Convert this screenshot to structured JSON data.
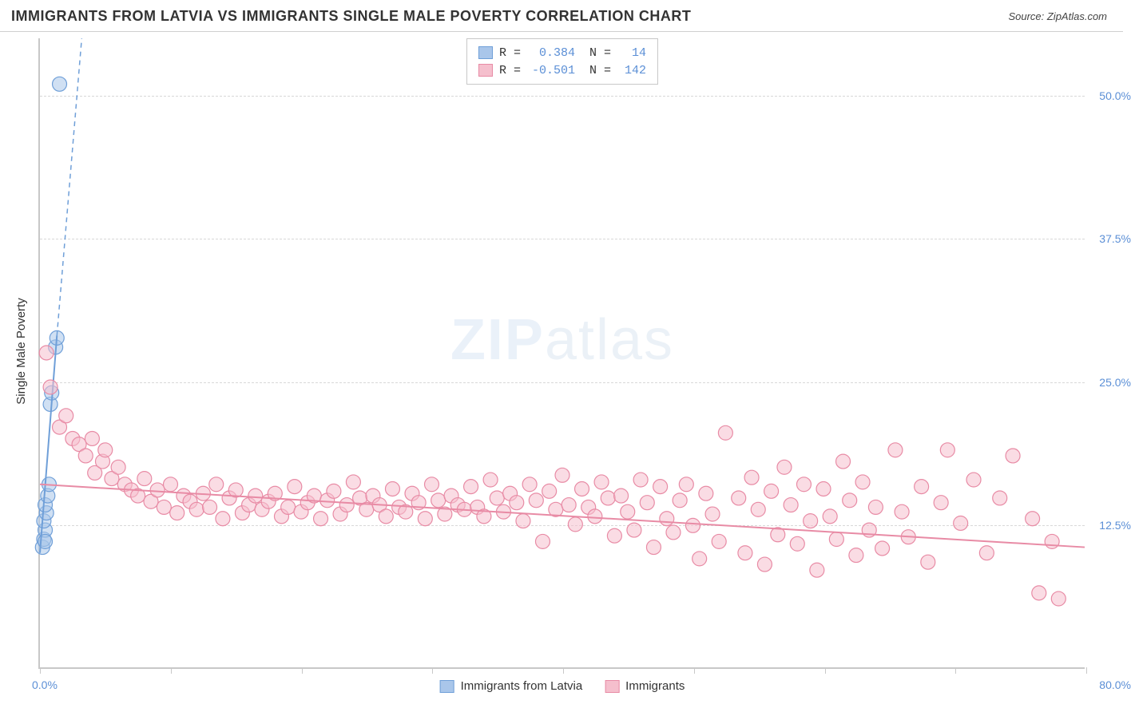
{
  "header": {
    "title": "IMMIGRANTS FROM LATVIA VS IMMIGRANTS SINGLE MALE POVERTY CORRELATION CHART",
    "source": "Source: ZipAtlas.com"
  },
  "watermark": {
    "bold": "ZIP",
    "light": "atlas"
  },
  "chart": {
    "type": "scatter",
    "background_color": "#ffffff",
    "grid_color": "#d8d8d8",
    "axis_color": "#c8c8c8",
    "text_color_axis": "#5b8fd6",
    "ylabel": "Single Male Poverty",
    "label_fontsize": 15,
    "xlim": [
      0,
      80
    ],
    "ylim": [
      0,
      55
    ],
    "x_min_label": "0.0%",
    "x_max_label": "80.0%",
    "x_ticks": [
      0,
      10,
      20,
      30,
      40,
      50,
      60,
      70,
      80
    ],
    "y_ticks": [
      {
        "v": 12.5,
        "label": "12.5%"
      },
      {
        "v": 25.0,
        "label": "25.0%"
      },
      {
        "v": 37.5,
        "label": "37.5%"
      },
      {
        "v": 50.0,
        "label": "50.0%"
      }
    ],
    "marker_radius": 9,
    "marker_opacity": 0.55,
    "line_width": 2,
    "dash_width": 1.5,
    "series": [
      {
        "id": "latvia",
        "name": "Immigrants from Latvia",
        "color_fill": "#a9c6ea",
        "color_stroke": "#6f9fd8",
        "R": "0.384",
        "N": "14",
        "points": [
          [
            0.2,
            10.5
          ],
          [
            0.3,
            11.2
          ],
          [
            0.4,
            12.0
          ],
          [
            0.3,
            12.8
          ],
          [
            0.5,
            13.5
          ],
          [
            0.4,
            14.2
          ],
          [
            0.6,
            15.0
          ],
          [
            0.7,
            16.0
          ],
          [
            0.4,
            11.0
          ],
          [
            0.8,
            23.0
          ],
          [
            0.9,
            24.0
          ],
          [
            1.2,
            28.0
          ],
          [
            1.3,
            28.8
          ],
          [
            1.5,
            51.0
          ]
        ],
        "trend_solid": {
          "x1": 0.0,
          "y1": 10.0,
          "x2": 1.3,
          "y2": 29.0
        },
        "trend_dash": {
          "x1": 1.3,
          "y1": 29.0,
          "x2": 3.2,
          "y2": 55.0
        }
      },
      {
        "id": "immigrants",
        "name": "Immigrants",
        "color_fill": "#f5bfcd",
        "color_stroke": "#e88ba5",
        "R": "-0.501",
        "N": "142",
        "points": [
          [
            0.5,
            27.5
          ],
          [
            0.8,
            24.5
          ],
          [
            1.5,
            21.0
          ],
          [
            2.0,
            22.0
          ],
          [
            2.5,
            20.0
          ],
          [
            3.0,
            19.5
          ],
          [
            3.5,
            18.5
          ],
          [
            4.0,
            20.0
          ],
          [
            4.2,
            17.0
          ],
          [
            4.8,
            18.0
          ],
          [
            5.0,
            19.0
          ],
          [
            5.5,
            16.5
          ],
          [
            6.0,
            17.5
          ],
          [
            6.5,
            16.0
          ],
          [
            7.0,
            15.5
          ],
          [
            7.5,
            15.0
          ],
          [
            8.0,
            16.5
          ],
          [
            8.5,
            14.5
          ],
          [
            9.0,
            15.5
          ],
          [
            9.5,
            14.0
          ],
          [
            10.0,
            16.0
          ],
          [
            10.5,
            13.5
          ],
          [
            11.0,
            15.0
          ],
          [
            11.5,
            14.5
          ],
          [
            12.0,
            13.8
          ],
          [
            12.5,
            15.2
          ],
          [
            13.0,
            14.0
          ],
          [
            13.5,
            16.0
          ],
          [
            14.0,
            13.0
          ],
          [
            14.5,
            14.8
          ],
          [
            15.0,
            15.5
          ],
          [
            15.5,
            13.5
          ],
          [
            16.0,
            14.2
          ],
          [
            16.5,
            15.0
          ],
          [
            17.0,
            13.8
          ],
          [
            17.5,
            14.5
          ],
          [
            18.0,
            15.2
          ],
          [
            18.5,
            13.2
          ],
          [
            19.0,
            14.0
          ],
          [
            19.5,
            15.8
          ],
          [
            20.0,
            13.6
          ],
          [
            20.5,
            14.4
          ],
          [
            21.0,
            15.0
          ],
          [
            21.5,
            13.0
          ],
          [
            22.0,
            14.6
          ],
          [
            22.5,
            15.4
          ],
          [
            23.0,
            13.4
          ],
          [
            23.5,
            14.2
          ],
          [
            24.0,
            16.2
          ],
          [
            24.5,
            14.8
          ],
          [
            25.0,
            13.8
          ],
          [
            25.5,
            15.0
          ],
          [
            26.0,
            14.2
          ],
          [
            26.5,
            13.2
          ],
          [
            27.0,
            15.6
          ],
          [
            27.5,
            14.0
          ],
          [
            28.0,
            13.6
          ],
          [
            28.5,
            15.2
          ],
          [
            29.0,
            14.4
          ],
          [
            29.5,
            13.0
          ],
          [
            30.0,
            16.0
          ],
          [
            30.5,
            14.6
          ],
          [
            31.0,
            13.4
          ],
          [
            31.5,
            15.0
          ],
          [
            32.0,
            14.2
          ],
          [
            32.5,
            13.8
          ],
          [
            33.0,
            15.8
          ],
          [
            33.5,
            14.0
          ],
          [
            34.0,
            13.2
          ],
          [
            34.5,
            16.4
          ],
          [
            35.0,
            14.8
          ],
          [
            35.5,
            13.6
          ],
          [
            36.0,
            15.2
          ],
          [
            36.5,
            14.4
          ],
          [
            37.0,
            12.8
          ],
          [
            37.5,
            16.0
          ],
          [
            38.0,
            14.6
          ],
          [
            38.5,
            11.0
          ],
          [
            39.0,
            15.4
          ],
          [
            39.5,
            13.8
          ],
          [
            40.0,
            16.8
          ],
          [
            40.5,
            14.2
          ],
          [
            41.0,
            12.5
          ],
          [
            41.5,
            15.6
          ],
          [
            42.0,
            14.0
          ],
          [
            42.5,
            13.2
          ],
          [
            43.0,
            16.2
          ],
          [
            43.5,
            14.8
          ],
          [
            44.0,
            11.5
          ],
          [
            44.5,
            15.0
          ],
          [
            45.0,
            13.6
          ],
          [
            45.5,
            12.0
          ],
          [
            46.0,
            16.4
          ],
          [
            46.5,
            14.4
          ],
          [
            47.0,
            10.5
          ],
          [
            47.5,
            15.8
          ],
          [
            48.0,
            13.0
          ],
          [
            48.5,
            11.8
          ],
          [
            49.0,
            14.6
          ],
          [
            49.5,
            16.0
          ],
          [
            50.0,
            12.4
          ],
          [
            50.5,
            9.5
          ],
          [
            51.0,
            15.2
          ],
          [
            51.5,
            13.4
          ],
          [
            52.0,
            11.0
          ],
          [
            52.5,
            20.5
          ],
          [
            53.5,
            14.8
          ],
          [
            54.0,
            10.0
          ],
          [
            54.5,
            16.6
          ],
          [
            55.0,
            13.8
          ],
          [
            55.5,
            9.0
          ],
          [
            56.0,
            15.4
          ],
          [
            56.5,
            11.6
          ],
          [
            57.0,
            17.5
          ],
          [
            57.5,
            14.2
          ],
          [
            58.0,
            10.8
          ],
          [
            58.5,
            16.0
          ],
          [
            59.0,
            12.8
          ],
          [
            59.5,
            8.5
          ],
          [
            60.0,
            15.6
          ],
          [
            60.5,
            13.2
          ],
          [
            61.0,
            11.2
          ],
          [
            61.5,
            18.0
          ],
          [
            62.0,
            14.6
          ],
          [
            62.5,
            9.8
          ],
          [
            63.0,
            16.2
          ],
          [
            63.5,
            12.0
          ],
          [
            64.0,
            14.0
          ],
          [
            64.5,
            10.4
          ],
          [
            65.5,
            19.0
          ],
          [
            66.0,
            13.6
          ],
          [
            66.5,
            11.4
          ],
          [
            67.5,
            15.8
          ],
          [
            68.0,
            9.2
          ],
          [
            69.0,
            14.4
          ],
          [
            69.5,
            19.0
          ],
          [
            70.5,
            12.6
          ],
          [
            71.5,
            16.4
          ],
          [
            72.5,
            10.0
          ],
          [
            73.5,
            14.8
          ],
          [
            74.5,
            18.5
          ],
          [
            76.0,
            13.0
          ],
          [
            77.5,
            11.0
          ],
          [
            76.5,
            6.5
          ],
          [
            78.0,
            6.0
          ]
        ],
        "trend_solid": {
          "x1": 0.0,
          "y1": 16.0,
          "x2": 80.0,
          "y2": 10.5
        }
      }
    ],
    "legend_top_labels": {
      "R": "R =",
      "N": "N ="
    },
    "legend_bottom": [
      {
        "swatch_fill": "#a9c6ea",
        "swatch_stroke": "#6f9fd8",
        "label": "Immigrants from Latvia"
      },
      {
        "swatch_fill": "#f5bfcd",
        "swatch_stroke": "#e88ba5",
        "label": "Immigrants"
      }
    ]
  }
}
